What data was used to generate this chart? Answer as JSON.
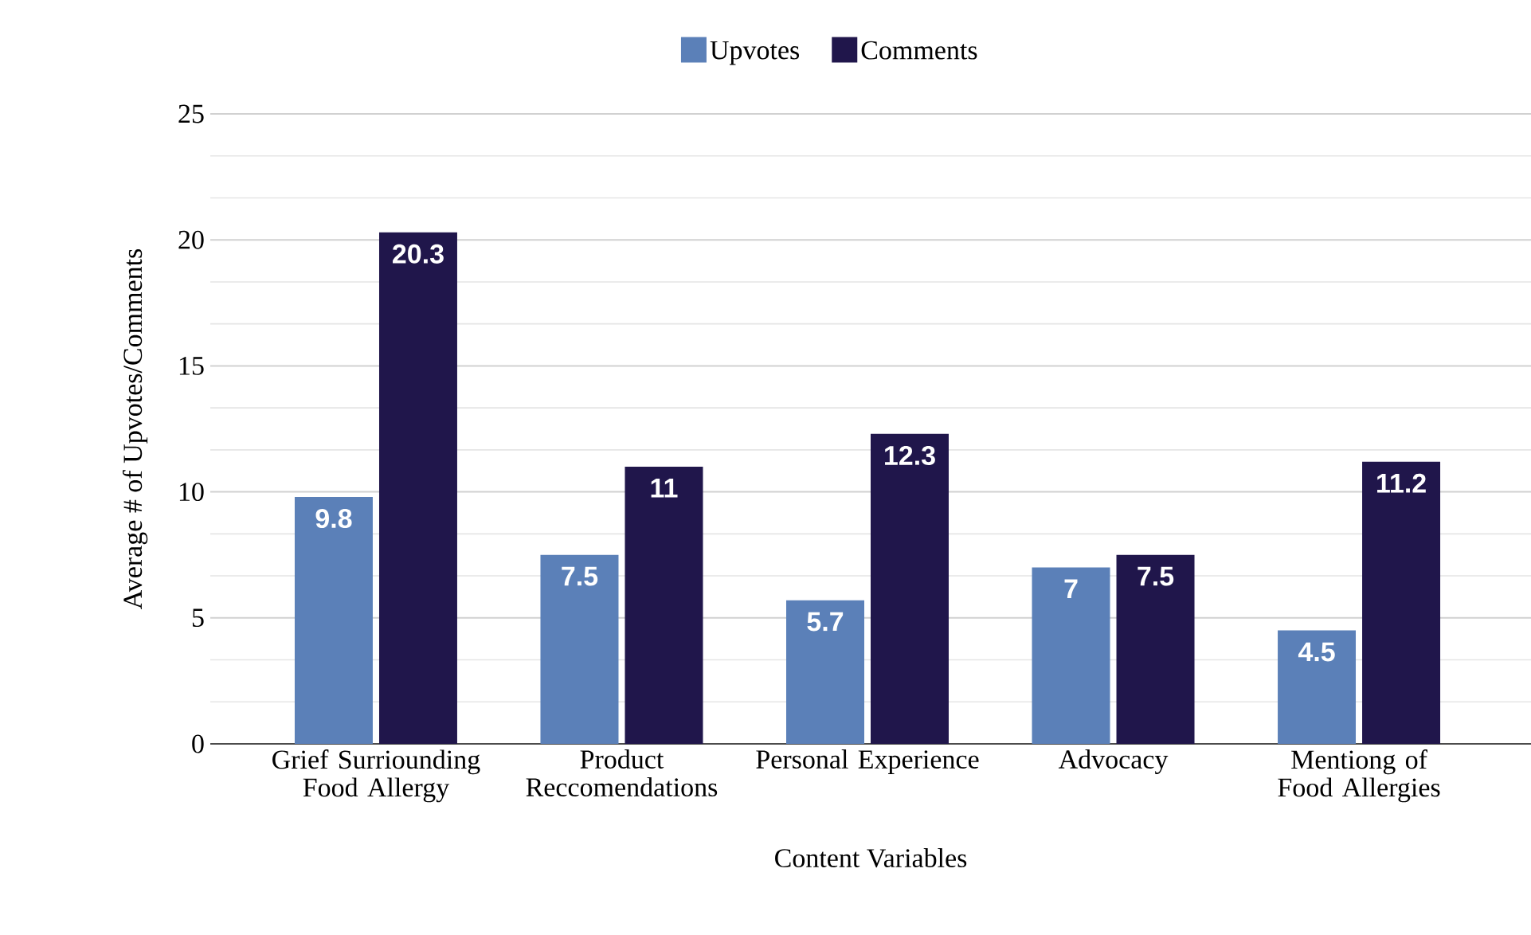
{
  "chart_data": {
    "type": "bar",
    "xlabel": "Content Variables",
    "ylabel": "Average # of Upvotes/Comments",
    "categories": [
      "Grief Surriounding Food Allergy",
      "Product Reccomendations",
      "Personal Experience",
      "Advocacy",
      "Mentiong of Food Allergies"
    ],
    "series": [
      {
        "name": "Upvotes",
        "color": "#5b80b8",
        "values": [
          9.8,
          7.5,
          5.7,
          7,
          4.5
        ]
      },
      {
        "name": "Comments",
        "color": "#20164b",
        "values": [
          20.3,
          11,
          12.3,
          7.5,
          11.2
        ]
      }
    ],
    "ylim": [
      0,
      25
    ],
    "yticks": [
      0,
      5,
      10,
      15,
      20,
      25
    ],
    "grid": "y",
    "legend": "top",
    "data_labels": true
  }
}
